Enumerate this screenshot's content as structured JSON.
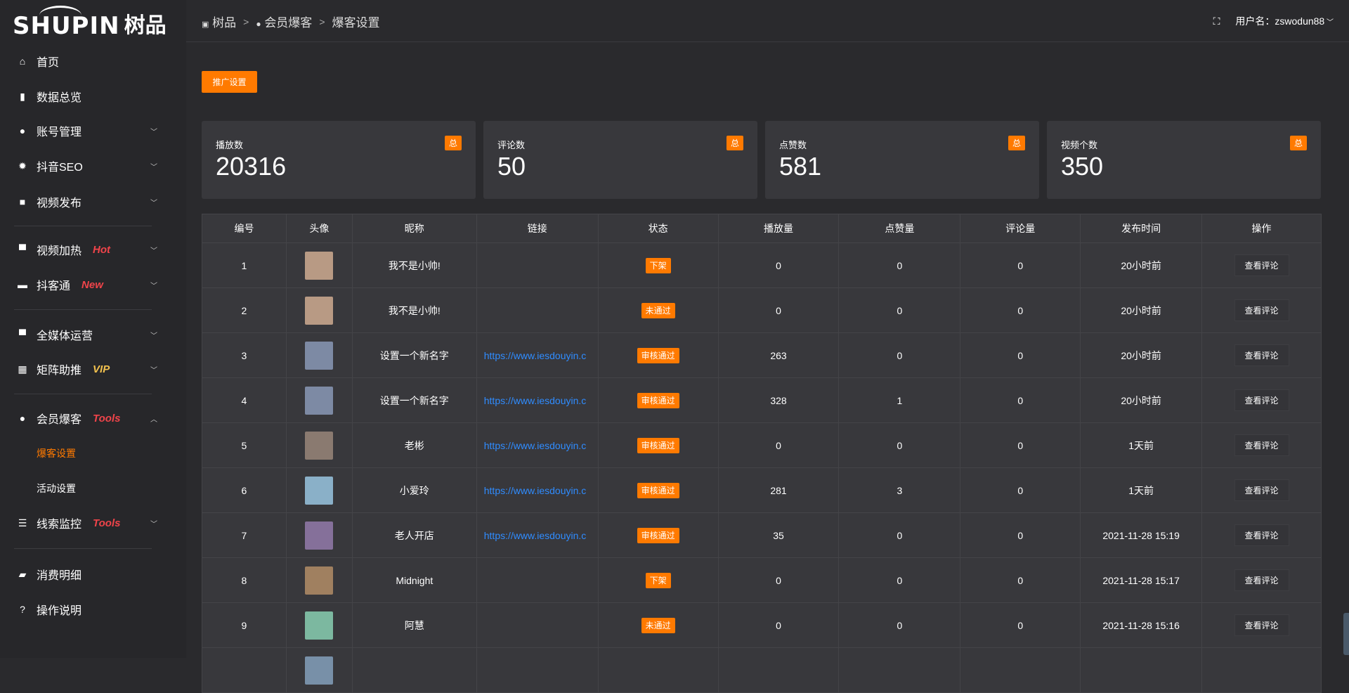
{
  "logo": {
    "en": "SHUPIN",
    "zh": "树品"
  },
  "sidebar": {
    "items": [
      {
        "label": "首页",
        "icon": "home-icon",
        "glyph": "⌂"
      },
      {
        "label": "数据总览",
        "icon": "bar-chart-icon",
        "glyph": "▮"
      },
      {
        "label": "账号管理",
        "icon": "user-icon",
        "glyph": "●",
        "chevron": "﹀"
      },
      {
        "label": "抖音SEO",
        "icon": "gear-icon",
        "glyph": "✹",
        "chevron": "﹀"
      },
      {
        "label": "视频发布",
        "icon": "camera-icon",
        "glyph": "■",
        "chevron": "﹀"
      },
      {
        "label": "视频加热",
        "icon": "flag-icon",
        "glyph": "▀",
        "tag": "Hot",
        "tag_color": "#f0444a",
        "chevron": "﹀"
      },
      {
        "label": "抖客通",
        "icon": "chat-icon",
        "glyph": "▬",
        "tag": "New",
        "tag_color": "#f0444a",
        "chevron": "﹀"
      },
      {
        "label": "全媒体运营",
        "icon": "monitor-icon",
        "glyph": "▀",
        "chevron": "﹀"
      },
      {
        "label": "矩阵助推",
        "icon": "grid-icon",
        "glyph": "▦",
        "tag": "VIP",
        "tag_color": "#f2c14e",
        "chevron": "﹀"
      },
      {
        "label": "会员爆客",
        "icon": "member-icon",
        "glyph": "●",
        "tag": "Tools",
        "tag_color": "#f0444a",
        "chevron": "︿"
      },
      {
        "label": "线索监控",
        "icon": "sliders-icon",
        "glyph": "☰",
        "tag": "Tools",
        "tag_color": "#f0444a",
        "chevron": "﹀"
      },
      {
        "label": "消费明细",
        "icon": "wallet-icon",
        "glyph": "▰"
      },
      {
        "label": "操作说明",
        "icon": "help-icon",
        "glyph": "?"
      }
    ],
    "sub": [
      {
        "label": "爆客设置",
        "active": true
      },
      {
        "label": "活动设置"
      }
    ]
  },
  "header": {
    "breadcrumb": [
      "树品",
      "会员爆客",
      "爆客设置"
    ],
    "sep": ">",
    "user_label": "用户名：zswodun88"
  },
  "promo_button": "推广设置",
  "accent": "#ff7a00",
  "cards": [
    {
      "label": "播放数",
      "value": "20316",
      "badge": "总"
    },
    {
      "label": "评论数",
      "value": "50",
      "badge": "总"
    },
    {
      "label": "点赞数",
      "value": "581",
      "badge": "总"
    },
    {
      "label": "视频个数",
      "value": "350",
      "badge": "总"
    }
  ],
  "table": {
    "headers": [
      "编号",
      "头像",
      "昵称",
      "链接",
      "状态",
      "播放量",
      "点赞量",
      "评论量",
      "发布时间",
      "操作"
    ],
    "rows": [
      {
        "id": "1",
        "nick": "我不是小帅!",
        "link": "",
        "status": "下架",
        "plays": "0",
        "likes": "0",
        "comments": "0",
        "time": "20小时前",
        "action": "查看评论",
        "avatar": "#b89a84"
      },
      {
        "id": "2",
        "nick": "我不是小帅!",
        "link": "",
        "status": "未通过",
        "plays": "0",
        "likes": "0",
        "comments": "0",
        "time": "20小时前",
        "action": "查看评论",
        "avatar": "#b89a84"
      },
      {
        "id": "3",
        "nick": "设置一个新名字",
        "link": "https://www.iesdouyin.c",
        "status": "审核通过",
        "plays": "263",
        "likes": "0",
        "comments": "0",
        "time": "20小时前",
        "action": "查看评论",
        "avatar": "#7d8aa4"
      },
      {
        "id": "4",
        "nick": "设置一个新名字",
        "link": "https://www.iesdouyin.c",
        "status": "审核通过",
        "plays": "328",
        "likes": "1",
        "comments": "0",
        "time": "20小时前",
        "action": "查看评论",
        "avatar": "#7d8aa4"
      },
      {
        "id": "5",
        "nick": "老彬",
        "link": "https://www.iesdouyin.c",
        "status": "审核通过",
        "plays": "0",
        "likes": "0",
        "comments": "0",
        "time": "1天前",
        "action": "查看评论",
        "avatar": "#8a7a70"
      },
      {
        "id": "6",
        "nick": "小爱玲",
        "link": "https://www.iesdouyin.c",
        "status": "审核通过",
        "plays": "281",
        "likes": "3",
        "comments": "0",
        "time": "1天前",
        "action": "查看评论",
        "avatar": "#8ab0c8"
      },
      {
        "id": "7",
        "nick": "老人开店",
        "link": "https://www.iesdouyin.c",
        "status": "审核通过",
        "plays": "35",
        "likes": "0",
        "comments": "0",
        "time": "2021-11-28 15:19",
        "action": "查看评论",
        "avatar": "#85709a"
      },
      {
        "id": "8",
        "nick": "Midnight",
        "link": "",
        "status": "下架",
        "plays": "0",
        "likes": "0",
        "comments": "0",
        "time": "2021-11-28 15:17",
        "action": "查看评论",
        "avatar": "#a08060"
      },
      {
        "id": "9",
        "nick": "阿慧",
        "link": "",
        "status": "未通过",
        "plays": "0",
        "likes": "0",
        "comments": "0",
        "time": "2021-11-28 15:16",
        "action": "查看评论",
        "avatar": "#7cb8a0"
      }
    ]
  }
}
